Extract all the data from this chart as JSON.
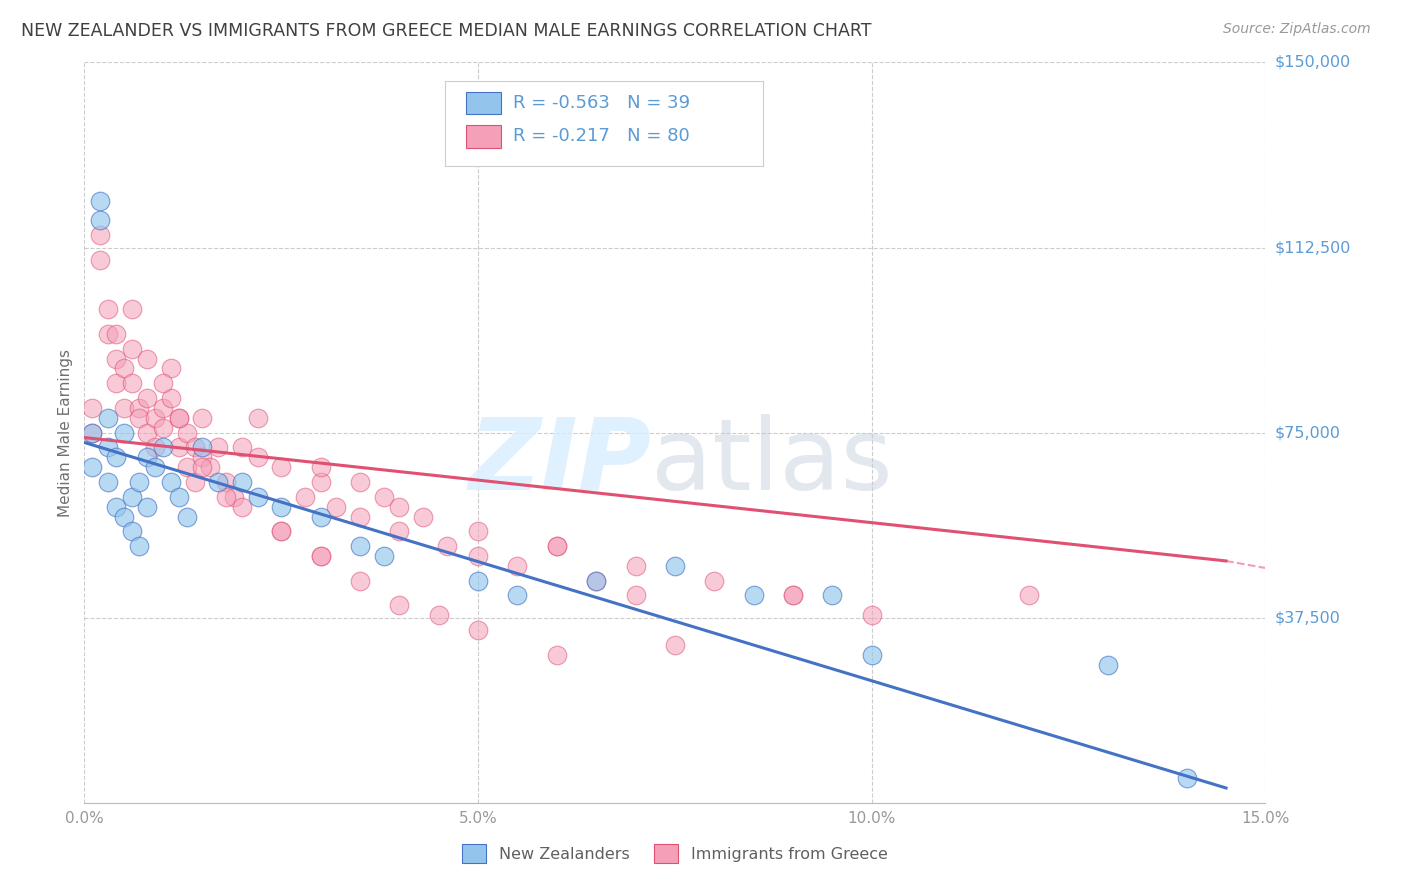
{
  "title": "NEW ZEALANDER VS IMMIGRANTS FROM GREECE MEDIAN MALE EARNINGS CORRELATION CHART",
  "source": "Source: ZipAtlas.com",
  "ylabel": "Median Male Earnings",
  "color1": "#93C5EC",
  "color2": "#F4A0B8",
  "line_color1": "#4472C4",
  "line_color2": "#E05070",
  "xmin": 0.0,
  "xmax": 0.15,
  "ymin": 0,
  "ymax": 150000,
  "yticks": [
    0,
    37500,
    75000,
    112500,
    150000
  ],
  "ytick_labels": [
    "",
    "$37,500",
    "$75,000",
    "$112,500",
    "$150,000"
  ],
  "xtick_labels": [
    "0.0%",
    "5.0%",
    "10.0%",
    "15.0%"
  ],
  "xticks": [
    0.0,
    0.05,
    0.1,
    0.15
  ],
  "grid_color": "#CCCCCC",
  "background_color": "#FFFFFF",
  "title_color": "#404040",
  "axis_label_color": "#707070",
  "tick_color_right": "#5B9BD5",
  "r1": -0.563,
  "n1": 39,
  "r2": -0.217,
  "n2": 80,
  "legend_label1": "New Zealanders",
  "legend_label2": "Immigrants from Greece",
  "scatter1_x": [
    0.001,
    0.001,
    0.002,
    0.002,
    0.003,
    0.003,
    0.003,
    0.004,
    0.004,
    0.005,
    0.005,
    0.006,
    0.006,
    0.007,
    0.007,
    0.008,
    0.008,
    0.009,
    0.01,
    0.011,
    0.012,
    0.013,
    0.015,
    0.017,
    0.02,
    0.022,
    0.025,
    0.03,
    0.035,
    0.038,
    0.05,
    0.055,
    0.065,
    0.075,
    0.085,
    0.095,
    0.1,
    0.13,
    0.14
  ],
  "scatter1_y": [
    75000,
    68000,
    122000,
    118000,
    78000,
    72000,
    65000,
    70000,
    60000,
    75000,
    58000,
    62000,
    55000,
    65000,
    52000,
    70000,
    60000,
    68000,
    72000,
    65000,
    62000,
    58000,
    72000,
    65000,
    65000,
    62000,
    60000,
    58000,
    52000,
    50000,
    45000,
    42000,
    45000,
    48000,
    42000,
    42000,
    30000,
    28000,
    5000
  ],
  "scatter2_x": [
    0.001,
    0.001,
    0.002,
    0.002,
    0.003,
    0.003,
    0.004,
    0.004,
    0.005,
    0.005,
    0.006,
    0.006,
    0.007,
    0.007,
    0.008,
    0.008,
    0.009,
    0.009,
    0.01,
    0.01,
    0.011,
    0.011,
    0.012,
    0.012,
    0.013,
    0.013,
    0.014,
    0.014,
    0.015,
    0.015,
    0.016,
    0.017,
    0.018,
    0.019,
    0.02,
    0.022,
    0.025,
    0.028,
    0.03,
    0.032,
    0.035,
    0.038,
    0.04,
    0.043,
    0.046,
    0.05,
    0.055,
    0.06,
    0.065,
    0.07,
    0.022,
    0.03,
    0.035,
    0.04,
    0.05,
    0.06,
    0.07,
    0.08,
    0.09,
    0.1,
    0.004,
    0.006,
    0.008,
    0.01,
    0.012,
    0.015,
    0.018,
    0.02,
    0.025,
    0.03,
    0.025,
    0.03,
    0.035,
    0.04,
    0.045,
    0.05,
    0.06,
    0.075,
    0.09,
    0.12
  ],
  "scatter2_y": [
    75000,
    80000,
    115000,
    110000,
    100000,
    95000,
    90000,
    85000,
    88000,
    80000,
    92000,
    85000,
    80000,
    78000,
    82000,
    75000,
    78000,
    72000,
    80000,
    76000,
    88000,
    82000,
    78000,
    72000,
    75000,
    68000,
    72000,
    65000,
    78000,
    70000,
    68000,
    72000,
    65000,
    62000,
    72000,
    70000,
    68000,
    62000,
    65000,
    60000,
    58000,
    62000,
    55000,
    58000,
    52000,
    50000,
    48000,
    52000,
    45000,
    42000,
    78000,
    68000,
    65000,
    60000,
    55000,
    52000,
    48000,
    45000,
    42000,
    38000,
    95000,
    100000,
    90000,
    85000,
    78000,
    68000,
    62000,
    60000,
    55000,
    50000,
    55000,
    50000,
    45000,
    40000,
    38000,
    35000,
    30000,
    32000,
    42000,
    42000
  ],
  "line1_x0": 0.0,
  "line1_x1": 0.145,
  "line1_y0": 73000,
  "line1_y1": 3000,
  "line2_x0": 0.0,
  "line2_x1": 0.145,
  "line2_y0": 74000,
  "line2_y1": 49000,
  "line2_dash_x0": 0.145,
  "line2_dash_x1": 0.152,
  "line2_dash_y0": 49000,
  "line2_dash_y1": 47000
}
